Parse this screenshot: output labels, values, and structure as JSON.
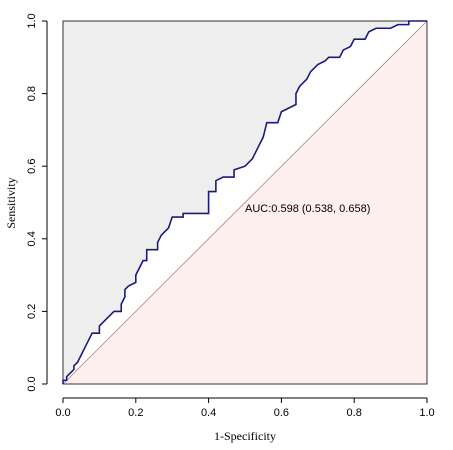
{
  "chart_data": {
    "type": "line",
    "xlabel": "1-Specificity",
    "ylabel": "Sensitivity",
    "annotation": "AUC:0.598 (0.538, 0.658)",
    "color": "#1a1a80",
    "x": [
      0,
      0,
      0.01,
      0.01,
      0.02,
      0.03,
      0.03,
      0.04,
      0.05,
      0.06,
      0.07,
      0.08,
      0.1,
      0.1,
      0.11,
      0.13,
      0.14,
      0.16,
      0.16,
      0.17,
      0.17,
      0.18,
      0.2,
      0.2,
      0.21,
      0.22,
      0.23,
      0.23,
      0.26,
      0.26,
      0.27,
      0.29,
      0.3,
      0.33,
      0.33,
      0.4,
      0.4,
      0.42,
      0.42,
      0.44,
      0.47,
      0.47,
      0.5,
      0.52,
      0.53,
      0.54,
      0.55,
      0.56,
      0.59,
      0.6,
      0.62,
      0.64,
      0.64,
      0.65,
      0.67,
      0.68,
      0.7,
      0.72,
      0.73,
      0.76,
      0.77,
      0.79,
      0.8,
      0.83,
      0.84,
      0.86,
      0.9,
      0.92,
      0.95,
      0.95,
      1
    ],
    "values": [
      0,
      0.01,
      0.01,
      0.02,
      0.03,
      0.04,
      0.05,
      0.06,
      0.08,
      0.1,
      0.12,
      0.14,
      0.14,
      0.16,
      0.17,
      0.19,
      0.2,
      0.2,
      0.22,
      0.24,
      0.26,
      0.27,
      0.28,
      0.3,
      0.32,
      0.34,
      0.34,
      0.37,
      0.37,
      0.39,
      0.41,
      0.43,
      0.46,
      0.46,
      0.47,
      0.47,
      0.53,
      0.53,
      0.56,
      0.57,
      0.57,
      0.59,
      0.6,
      0.62,
      0.64,
      0.66,
      0.68,
      0.72,
      0.72,
      0.75,
      0.76,
      0.77,
      0.8,
      0.82,
      0.84,
      0.86,
      0.88,
      0.89,
      0.9,
      0.9,
      0.92,
      0.93,
      0.95,
      0.95,
      0.97,
      0.98,
      0.98,
      0.99,
      0.99,
      1,
      1
    ],
    "xlim": [
      0,
      1
    ],
    "ylim": [
      0,
      1
    ],
    "xticks": [
      {
        "value": 0,
        "label": "0.0"
      },
      0.2,
      0.4,
      0.6,
      0.8,
      {
        "value": 1,
        "label": "1.0"
      }
    ],
    "yticks": [
      {
        "value": 0,
        "label": "0.0"
      },
      0.2,
      0.4,
      0.6,
      0.8,
      {
        "value": 1,
        "label": "1.0"
      }
    ]
  }
}
